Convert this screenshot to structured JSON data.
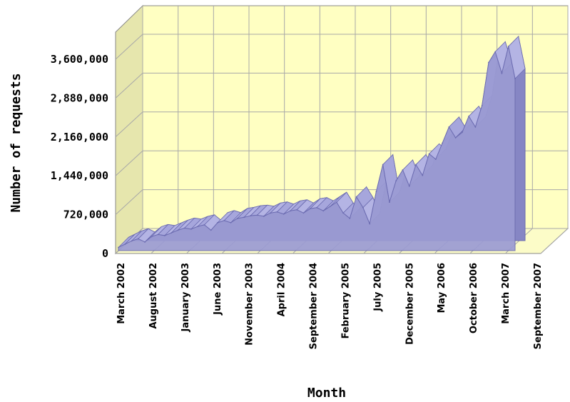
{
  "chart_data": {
    "type": "area",
    "title": "",
    "xlabel": "Month",
    "ylabel": "Number of requests",
    "ylim": [
      0,
      3600000
    ],
    "y_ticks": [
      "0",
      "720,000",
      "1,440,000",
      "2,160,000",
      "2,880,000",
      "3,600,000"
    ],
    "y_tick_values": [
      0,
      720000,
      1440000,
      2160000,
      2880000,
      3600000
    ],
    "x_tick_labels": [
      "March 2002",
      "August 2002",
      "January 2003",
      "June 2003",
      "November 2003",
      "April 2004",
      "September 2004",
      "February 2005",
      "July 2005",
      "December 2005",
      "May 2006",
      "October 2006",
      "March 2007",
      "September 2007"
    ],
    "grid": true,
    "three_d": true,
    "series": [
      {
        "values": [
          60000,
          120000,
          180000,
          220000,
          160000,
          260000,
          300000,
          280000,
          330000,
          380000,
          420000,
          400000,
          450000,
          480000,
          380000,
          520000,
          560000,
          520000,
          600000,
          620000,
          650000,
          660000,
          640000,
          700000,
          720000,
          680000,
          740000,
          760000,
          700000,
          780000,
          800000,
          740000,
          820000,
          900000,
          700000,
          600000,
          1000000,
          800000,
          500000,
          1100000,
          1600000,
          900000,
          1300000,
          1500000,
          1200000,
          1600000,
          1400000,
          1800000,
          1700000,
          2000000,
          2300000,
          2100000,
          2200000,
          2500000,
          2300000,
          2700000,
          3500000,
          3700000,
          3300000,
          3800000,
          3200000
        ]
      }
    ],
    "colors": {
      "area_fill": "#9b9bd3",
      "area_edge": "#6b6bb0",
      "plot_background": "#ffffc2",
      "side_wall": "#e6e6ad",
      "floor": "#fcfcc8",
      "grid": "#a8a8a8"
    }
  }
}
